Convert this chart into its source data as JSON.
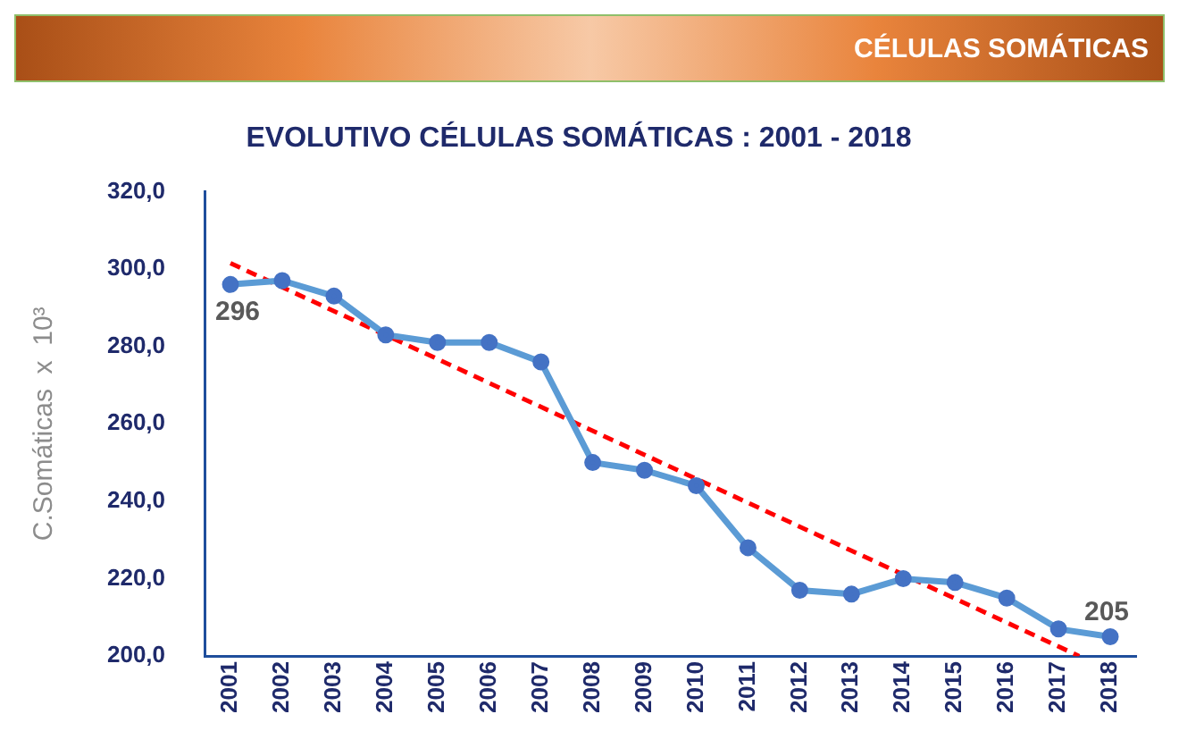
{
  "chart_data": {
    "type": "line",
    "title": "EVOLUTIVO CÉLULAS SOMÁTICAS : 2001 - 2018",
    "subtitle": "CÉLULAS SOMÁTICAS",
    "ylabel": "C.Somáticas  x  10³",
    "x": [
      2001,
      2002,
      2003,
      2004,
      2005,
      2006,
      2007,
      2008,
      2009,
      2010,
      2011,
      2012,
      2013,
      2014,
      2015,
      2016,
      2017,
      2018
    ],
    "xlim": [
      2000.5,
      2018.5
    ],
    "xticks": [
      2001,
      2002,
      2003,
      2004,
      2005,
      2006,
      2007,
      2008,
      2009,
      2010,
      2011,
      2012,
      2013,
      2014,
      2015,
      2016,
      2017,
      2018
    ],
    "ylim": [
      200,
      320
    ],
    "yticks": [
      {
        "value": 200,
        "label": "200,0"
      },
      {
        "value": 220,
        "label": "220,0"
      },
      {
        "value": 240,
        "label": "240,0"
      },
      {
        "value": 260,
        "label": "260,0"
      },
      {
        "value": 280,
        "label": "280,0"
      },
      {
        "value": 300,
        "label": "300,0"
      },
      {
        "value": 320,
        "label": "320,0"
      }
    ],
    "series": [
      {
        "color": "#5b9bd5",
        "marker": "circle",
        "values": [
          296,
          297,
          293,
          283,
          281,
          281,
          276,
          250,
          248,
          244,
          228,
          217,
          216,
          220,
          219,
          215,
          207,
          205
        ],
        "value_labels": [
          "296",
          null,
          null,
          null,
          null,
          null,
          null,
          null,
          null,
          null,
          null,
          null,
          null,
          null,
          null,
          null,
          null,
          "205"
        ]
      },
      {
        "color": "#ff0000",
        "marker": "none",
        "line_style": "dashed",
        "x": [
          2001,
          2017.4
        ],
        "values": [
          301.5,
          200
        ]
      }
    ],
    "grid": false,
    "legend": false
  }
}
